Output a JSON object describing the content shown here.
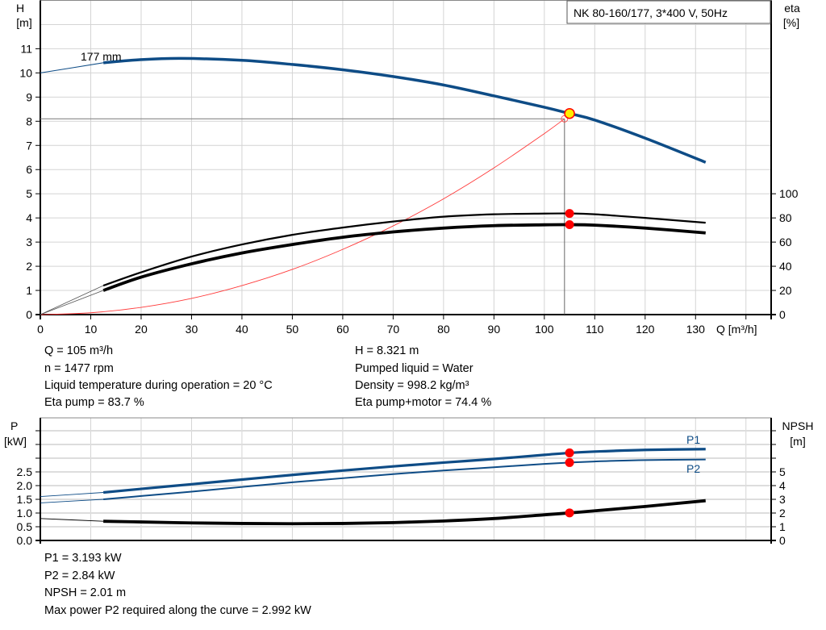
{
  "title": "NK 80-160/177, 3*400 V, 50Hz",
  "colors": {
    "pump_curve": "#0e4c86",
    "efficiency": "#000000",
    "system_curve": "#ff3a3a",
    "duty_point": "#ffee00",
    "marker": "#ff0000",
    "grid": "#d4d4d4"
  },
  "chart_data": [
    {
      "type": "line",
      "xlabel": "Q [m³/h]",
      "ylabel_left": [
        "H",
        "[m]"
      ],
      "ylabel_right": [
        "eta",
        "[%]"
      ],
      "xlim": [
        0,
        145
      ],
      "ylim": [
        0,
        13
      ],
      "ylim_right": [
        0,
        260
      ],
      "grid": true,
      "x_ticks": [
        0,
        10,
        20,
        30,
        40,
        50,
        60,
        70,
        80,
        90,
        100,
        110,
        120,
        130
      ],
      "y_ticks": [
        0,
        1,
        2,
        3,
        4,
        5,
        6,
        7,
        8,
        9,
        10,
        11
      ],
      "y_ticks_right": [
        0,
        20,
        40,
        60,
        80,
        100
      ],
      "curve_label": "177 mm",
      "series": [
        {
          "key": "head",
          "axis": "left",
          "x": [
            0,
            12.5,
            20,
            28,
            40,
            50,
            60,
            70,
            80,
            90,
            100,
            105,
            110,
            120,
            132
          ],
          "y": [
            10.0,
            10.42,
            10.55,
            10.6,
            10.52,
            10.35,
            10.13,
            9.85,
            9.5,
            9.05,
            8.58,
            8.321,
            8.05,
            7.3,
            6.3
          ]
        },
        {
          "key": "eta_pump",
          "axis": "right",
          "x": [
            0,
            12.5,
            20,
            30,
            40,
            50,
            60,
            70,
            80,
            90,
            100,
            105,
            110,
            120,
            132
          ],
          "y": [
            0,
            24,
            35,
            48,
            58,
            66,
            72,
            77,
            81,
            83,
            83.6,
            83.7,
            83,
            80,
            76
          ]
        },
        {
          "key": "eta_pump_motor",
          "axis": "right",
          "x": [
            0,
            12.5,
            20,
            30,
            40,
            50,
            60,
            70,
            80,
            90,
            100,
            105,
            110,
            120,
            132
          ],
          "y": [
            0,
            20,
            31,
            42,
            51,
            58,
            64,
            68.4,
            71.6,
            73.6,
            74.3,
            74.4,
            74,
            71.6,
            67.6
          ]
        },
        {
          "key": "system",
          "axis": "left",
          "x": [
            0,
            10,
            20,
            30,
            40,
            50,
            60,
            70,
            80,
            90,
            100,
            104
          ],
          "y": [
            0,
            0.075,
            0.3,
            0.67,
            1.2,
            1.87,
            2.7,
            3.67,
            4.79,
            6.07,
            7.49,
            8.1
          ]
        }
      ],
      "duty_point": {
        "x": 105,
        "y": 8.321
      },
      "system_point": {
        "x": 104,
        "y": 8.1
      },
      "operating_range_start": 12.5
    },
    {
      "type": "line",
      "ylabel_left": [
        "P",
        "[kW]"
      ],
      "ylabel_right": [
        "NPSH",
        "[m]"
      ],
      "xlim": [
        0,
        145
      ],
      "ylim": [
        0,
        4.47
      ],
      "ylim_right": [
        0,
        8.94
      ],
      "grid": true,
      "y_ticks": [
        "0.0",
        "0.5",
        "1.0",
        "1.5",
        "2.0",
        "2.5"
      ],
      "y_ticks_right": [
        0,
        1,
        2,
        3,
        4,
        5
      ],
      "series": [
        {
          "key": "P1",
          "name": "P1",
          "axis": "left",
          "x": [
            0,
            12.5,
            20,
            30,
            40,
            50,
            60,
            70,
            80,
            90,
            100,
            105,
            110,
            120,
            132
          ],
          "y": [
            1.6,
            1.75,
            1.88,
            2.05,
            2.22,
            2.39,
            2.55,
            2.7,
            2.84,
            2.97,
            3.12,
            3.193,
            3.24,
            3.3,
            3.33
          ]
        },
        {
          "key": "P2",
          "name": "P2",
          "axis": "left",
          "x": [
            0,
            12.5,
            20,
            30,
            40,
            50,
            60,
            70,
            80,
            90,
            100,
            105,
            110,
            120,
            132
          ],
          "y": [
            1.37,
            1.5,
            1.62,
            1.78,
            1.95,
            2.12,
            2.27,
            2.42,
            2.55,
            2.67,
            2.79,
            2.84,
            2.88,
            2.93,
            2.95
          ]
        },
        {
          "key": "NPSH",
          "axis": "right",
          "x": [
            0,
            12.5,
            20,
            30,
            40,
            50,
            60,
            70,
            80,
            90,
            100,
            105,
            110,
            120,
            132
          ],
          "y": [
            1.6,
            1.4,
            1.35,
            1.28,
            1.24,
            1.22,
            1.24,
            1.3,
            1.42,
            1.6,
            1.87,
            2.01,
            2.16,
            2.48,
            2.9
          ]
        }
      ],
      "duty_x": 105
    }
  ],
  "info_top": {
    "left": [
      "Q = 105 m³/h",
      "n = 1477 rpm",
      "Liquid temperature during operation = 20 °C",
      "Eta pump = 83.7 %"
    ],
    "right": [
      "H = 8.321 m",
      "Pumped liquid = Water",
      "Density = 998.2 kg/m³",
      "Eta pump+motor = 74.4 %"
    ]
  },
  "info_bottom": [
    "P1 = 3.193 kW",
    "P2 = 2.84 kW",
    "NPSH = 2.01 m",
    "Max power P2 required along the curve = 2.992 kW"
  ]
}
